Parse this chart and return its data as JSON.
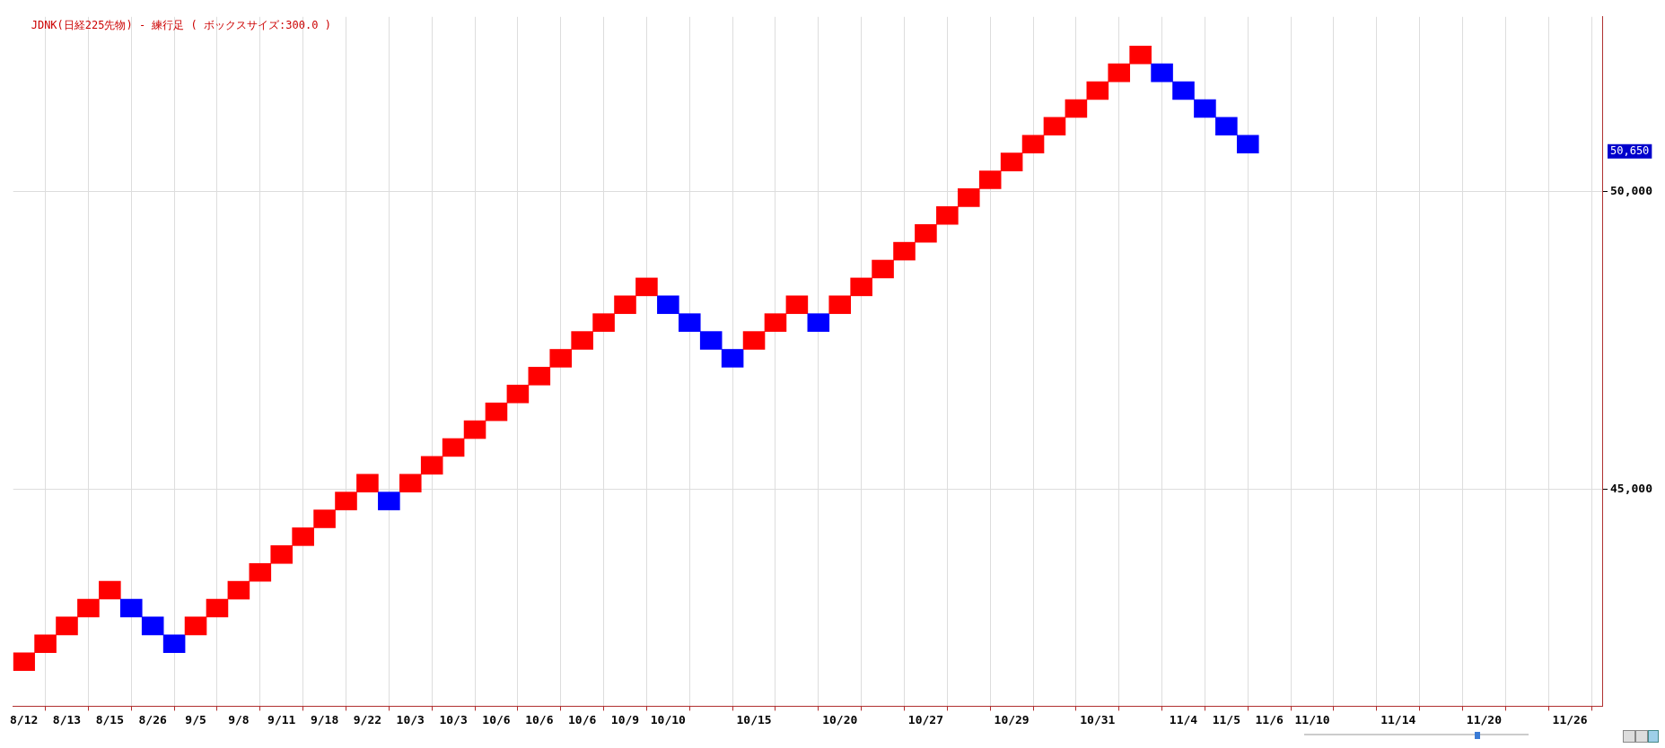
{
  "chart_data": {
    "type": "bar",
    "title": "JDNK(日経225先物) - 練行足 ( ボックスサイズ:300.0 )",
    "categories": [
      "8/12",
      null,
      "8/13",
      null,
      "8/15",
      null,
      "8/26",
      null,
      "9/5",
      null,
      "9/8",
      null,
      "9/11",
      null,
      "9/18",
      null,
      "9/22",
      null,
      "10/3",
      null,
      "10/3",
      null,
      "10/6",
      null,
      "10/6",
      null,
      "10/6",
      null,
      "10/9",
      null,
      "10/10",
      null,
      null,
      null,
      "10/15",
      null,
      null,
      null,
      "10/20",
      null,
      null,
      null,
      "10/27",
      null,
      null,
      null,
      "10/29",
      null,
      null,
      null,
      "10/31",
      null,
      null,
      null,
      "11/4",
      null,
      "11/5",
      null,
      "11/6",
      null,
      "11/10",
      null,
      null,
      null,
      "11/14",
      null,
      null,
      null,
      "11/20",
      null,
      null,
      null,
      "11/26",
      null
    ],
    "base": [
      41950,
      42250,
      42550,
      42850,
      43150,
      43150,
      42850,
      42550,
      42550,
      42850,
      43150,
      43450,
      43750,
      44050,
      44350,
      44650,
      44950,
      44950,
      44950,
      45250,
      45550,
      45850,
      46150,
      46450,
      46750,
      47050,
      47350,
      47650,
      47950,
      48250,
      48250,
      47950,
      47650,
      47350,
      47350,
      47650,
      47950,
      47950,
      47950,
      48250,
      48550,
      48850,
      49150,
      49450,
      49750,
      50050,
      50350,
      50650,
      50950,
      51250,
      51550,
      51850,
      52150,
      52150,
      51850,
      51550,
      51250,
      50950,
      null,
      null,
      null,
      null,
      null,
      null,
      null,
      null,
      null,
      null,
      null,
      null,
      null,
      null,
      null,
      null
    ],
    "values": [
      300,
      300,
      300,
      300,
      300,
      -300,
      -300,
      -300,
      300,
      300,
      300,
      300,
      300,
      300,
      300,
      300,
      300,
      -300,
      300,
      300,
      300,
      300,
      300,
      300,
      300,
      300,
      300,
      300,
      300,
      300,
      -300,
      -300,
      -300,
      -300,
      300,
      300,
      300,
      -300,
      300,
      300,
      300,
      300,
      300,
      300,
      300,
      300,
      300,
      300,
      300,
      300,
      300,
      300,
      300,
      -300,
      -300,
      -300,
      -300,
      -300,
      null,
      null,
      null,
      null,
      null,
      null,
      null,
      null,
      null,
      null,
      null,
      null,
      null,
      null,
      null,
      null
    ],
    "colors": [
      "#ff0000",
      "#ff0000",
      "#ff0000",
      "#ff0000",
      "#ff0000",
      "#0000ff",
      "#0000ff",
      "#0000ff",
      "#ff0000",
      "#ff0000",
      "#ff0000",
      "#ff0000",
      "#ff0000",
      "#ff0000",
      "#ff0000",
      "#ff0000",
      "#ff0000",
      "#0000ff",
      "#ff0000",
      "#ff0000",
      "#ff0000",
      "#ff0000",
      "#ff0000",
      "#ff0000",
      "#ff0000",
      "#ff0000",
      "#ff0000",
      "#ff0000",
      "#ff0000",
      "#ff0000",
      "#0000ff",
      "#0000ff",
      "#0000ff",
      "#0000ff",
      "#ff0000",
      "#ff0000",
      "#ff0000",
      "#0000ff",
      "#ff0000",
      "#ff0000",
      "#ff0000",
      "#ff0000",
      "#ff0000",
      "#ff0000",
      "#ff0000",
      "#ff0000",
      "#ff0000",
      "#ff0000",
      "#ff0000",
      "#ff0000",
      "#ff0000",
      "#ff0000",
      "#ff0000",
      "#0000ff",
      "#0000ff",
      "#0000ff",
      "#0000ff",
      "#0000ff",
      null,
      null,
      null,
      null,
      null,
      null,
      null,
      null,
      null,
      null,
      null,
      null,
      null,
      null,
      null,
      null
    ],
    "ylim": [
      41350,
      52940
    ],
    "yticks": [
      {
        "value": 45000,
        "label": "45,000"
      },
      {
        "value": 50000,
        "label": "50,000"
      }
    ],
    "annotations": [
      "50,650"
    ],
    "grid": true,
    "legend": false
  }
}
